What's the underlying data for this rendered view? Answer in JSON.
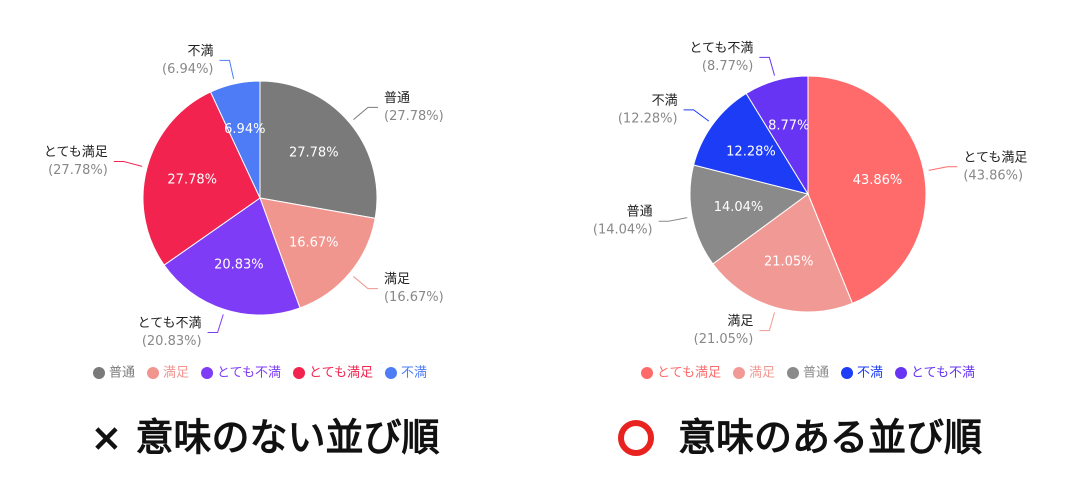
{
  "chart_data": [
    {
      "type": "pie",
      "categories": [
        "普通",
        "満足",
        "とても不満",
        "とても満足",
        "不満"
      ],
      "values": [
        27.78,
        16.67,
        20.83,
        27.78,
        6.94
      ],
      "value_labels": [
        "27.78%",
        "16.67%",
        "20.83%",
        "27.78%",
        "6.94%"
      ],
      "outer_value_labels": [
        "(27.78%)",
        "(16.67%)",
        "(20.83%)",
        "(27.78%)",
        "(6.94%)"
      ],
      "colors": [
        "#7a7a7a",
        "#f1958f",
        "#7f3cf6",
        "#f2244f",
        "#4d7cf6"
      ],
      "legend": "bottom",
      "caption": "× 意味のない並び順"
    },
    {
      "type": "pie",
      "categories": [
        "とても満足",
        "満足",
        "普通",
        "不満",
        "とても不満"
      ],
      "values": [
        43.86,
        21.05,
        14.04,
        12.28,
        8.77
      ],
      "value_labels": [
        "43.86%",
        "21.05%",
        "14.04%",
        "12.28%",
        "8.77%"
      ],
      "outer_value_labels": [
        "(43.86%)",
        "(21.05%)",
        "(14.04%)",
        "(12.28%)",
        "(8.77%)"
      ],
      "colors": [
        "#ff6b6b",
        "#f19a95",
        "#8a8a8a",
        "#1c3cf6",
        "#6634f2"
      ],
      "legend": "bottom",
      "caption": "意味のある並び順"
    }
  ]
}
